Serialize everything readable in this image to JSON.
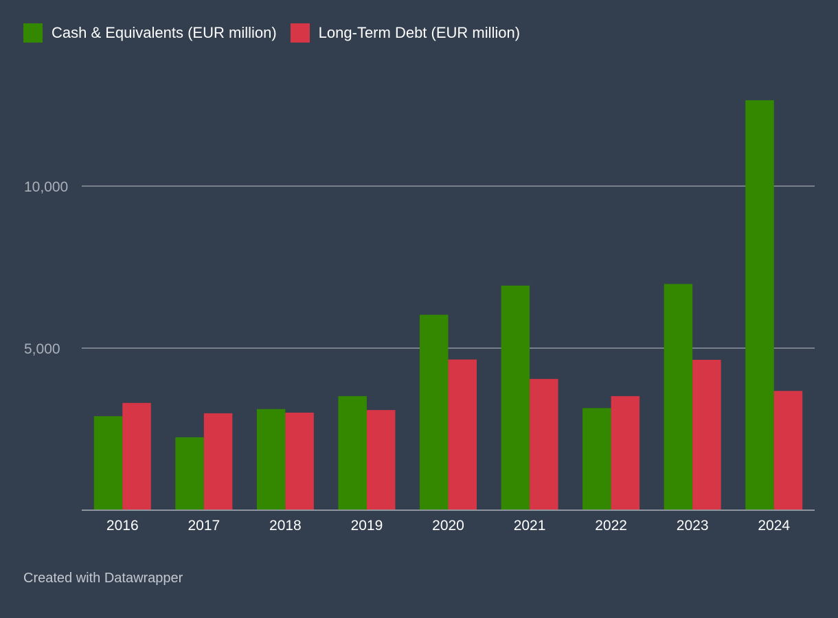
{
  "chart_data": {
    "type": "bar",
    "categories": [
      "2016",
      "2017",
      "2018",
      "2019",
      "2020",
      "2021",
      "2022",
      "2023",
      "2024"
    ],
    "series": [
      {
        "name": "Cash & Equivalents (EUR million)",
        "color": "#338800",
        "values": [
          2900,
          2250,
          3120,
          3520,
          6030,
          6930,
          3150,
          6980,
          12650
        ]
      },
      {
        "name": "Long-Term Debt (EUR million)",
        "color": "#d73646",
        "values": [
          3310,
          2990,
          3010,
          3090,
          4650,
          4050,
          3520,
          4640,
          3680
        ]
      }
    ],
    "ylim": [
      0,
      13500
    ],
    "yticks": [
      5000,
      10000
    ],
    "ytick_labels": [
      "5,000",
      "10,000"
    ],
    "grid": true,
    "legend": "top-left",
    "title": "",
    "xlabel": "",
    "ylabel": ""
  },
  "footer": {
    "credit": "Created with Datawrapper"
  },
  "colors": {
    "background": "#333e4e",
    "gridline": "#8e959f",
    "tick_label": "#aab0ba",
    "category_label": "#ffffff"
  }
}
